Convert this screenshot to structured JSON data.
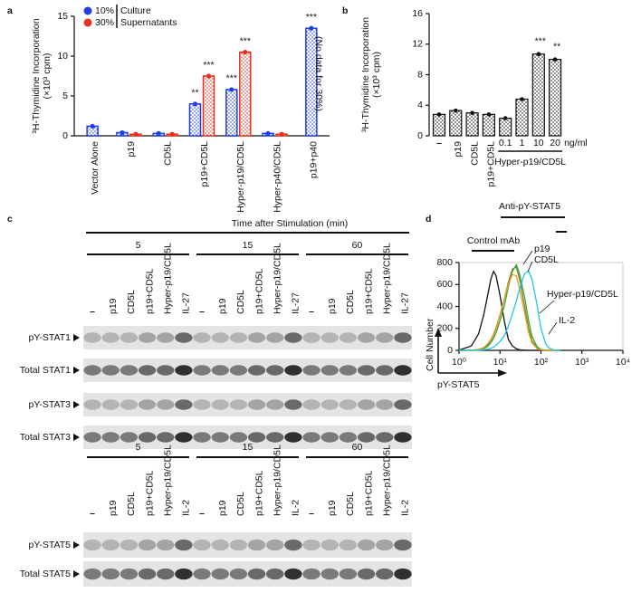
{
  "panel_labels": [
    "a",
    "b",
    "c",
    "d"
  ],
  "chart_data": [
    {
      "type": "bar",
      "ylabel": [
        "³H-Thymidine Incorporation",
        "(×10³ cpm)"
      ],
      "categories": [
        "Vector Alone",
        "p19",
        "CD5L",
        "p19+CD5L",
        "Hyper-p19/CD5L",
        "Hyper-p40/CD5L",
        "p19+p40"
      ],
      "series": [
        {
          "name": "10%",
          "color": "#1f3fe0",
          "values": [
            1.2,
            0.4,
            0.3,
            4.0,
            5.8,
            0.3,
            13.5
          ],
          "significance": [
            null,
            null,
            null,
            "**",
            "***",
            null,
            "***"
          ]
        },
        {
          "name": "30%",
          "color": "#e8301c",
          "values": [
            null,
            0.2,
            0.2,
            7.5,
            10.5,
            0.2,
            null
          ],
          "significance": [
            null,
            null,
            null,
            "***",
            "***",
            null,
            null
          ]
        }
      ],
      "legend_note": [
        "Culture",
        "Supernatants"
      ],
      "note": "(No data for 30%)",
      "ylim": [
        0,
        15
      ],
      "yticks": [
        0,
        5,
        10,
        15
      ]
    },
    {
      "type": "bar",
      "ylabel": [
        "³H-Thymidine Incorporation",
        "(×10³ cpm)"
      ],
      "categories": [
        "–",
        "p19",
        "CD5L",
        "p19+CD5L",
        "0.1",
        "1",
        "10",
        "20"
      ],
      "unit": "ng/ml",
      "group_label": "Hyper-p19/CD5L",
      "color": "#111111",
      "values": [
        2.8,
        3.3,
        3.0,
        2.8,
        2.3,
        4.8,
        10.7,
        10.0
      ],
      "significance": [
        null,
        null,
        null,
        null,
        null,
        null,
        "***",
        "**"
      ],
      "ylim": [
        0,
        16
      ],
      "yticks": [
        0,
        4,
        8,
        12,
        16
      ]
    },
    {
      "type": "line",
      "title": "Anti-pY-STAT5",
      "xlabel": "pY-STAT5",
      "ylabel": "Cell Number",
      "log_x": true,
      "x": [
        1,
        2,
        3,
        4,
        5,
        6,
        7,
        8,
        10,
        13,
        16,
        20,
        25,
        30,
        40,
        50,
        60,
        80,
        100,
        130,
        160,
        200,
        300
      ],
      "series": [
        {
          "name": "Control mAb",
          "color": "#111111",
          "values": [
            2,
            40,
            150,
            320,
            500,
            650,
            720,
            680,
            500,
            250,
            100,
            40,
            15,
            5,
            2,
            0,
            0,
            0,
            0,
            0,
            0,
            0,
            0
          ]
        },
        {
          "name": "p19",
          "color": "#8a7a2a",
          "values": [
            0,
            2,
            8,
            20,
            50,
            90,
            140,
            200,
            320,
            480,
            620,
            740,
            760,
            650,
            400,
            200,
            90,
            20,
            5,
            1,
            0,
            0,
            0
          ]
        },
        {
          "name": "CD5L",
          "color": "#3aa63a",
          "values": [
            0,
            1,
            5,
            15,
            35,
            70,
            110,
            160,
            270,
            420,
            580,
            720,
            780,
            700,
            480,
            270,
            130,
            35,
            8,
            2,
            0,
            0,
            0
          ]
        },
        {
          "name": "Hyper-p19/CD5L",
          "color": "#e8a020",
          "values": [
            0,
            2,
            10,
            25,
            60,
            100,
            150,
            210,
            330,
            480,
            600,
            690,
            680,
            560,
            340,
            160,
            70,
            15,
            4,
            1,
            0,
            0,
            0
          ]
        },
        {
          "name": "IL-2",
          "color": "#20c8e8",
          "values": [
            0,
            0,
            2,
            5,
            10,
            20,
            30,
            45,
            80,
            140,
            220,
            330,
            450,
            560,
            700,
            720,
            650,
            420,
            200,
            60,
            20,
            5,
            0
          ]
        }
      ],
      "xlim": [
        1,
        10000
      ],
      "xticks": [
        {
          "value": 1,
          "label": "10⁰"
        },
        {
          "value": 10,
          "label": "10¹"
        },
        {
          "value": 100,
          "label": "10²"
        },
        {
          "value": 1000,
          "label": "10³"
        },
        {
          "value": 10000,
          "label": "10⁴"
        }
      ],
      "ylim": [
        0,
        800
      ],
      "yticks": [
        0,
        200,
        400,
        600,
        800
      ]
    }
  ],
  "blots": {
    "title": "Time after Stimulation (min)",
    "times": [
      "5",
      "15",
      "60"
    ],
    "panels": [
      {
        "lanes": [
          "–",
          "p19",
          "CD5L",
          "p19+CD5L",
          "Hyper-p19/CD5L",
          "IL-27"
        ],
        "rows": [
          "pY-STAT1",
          "Total STAT1",
          "pY-STAT3",
          "Total STAT3"
        ]
      },
      {
        "lanes": [
          "–",
          "p19",
          "CD5L",
          "p19+CD5L",
          "Hyper-p19/CD5L",
          "IL-2"
        ],
        "rows": [
          "pY-STAT5",
          "Total STAT5"
        ]
      }
    ]
  }
}
